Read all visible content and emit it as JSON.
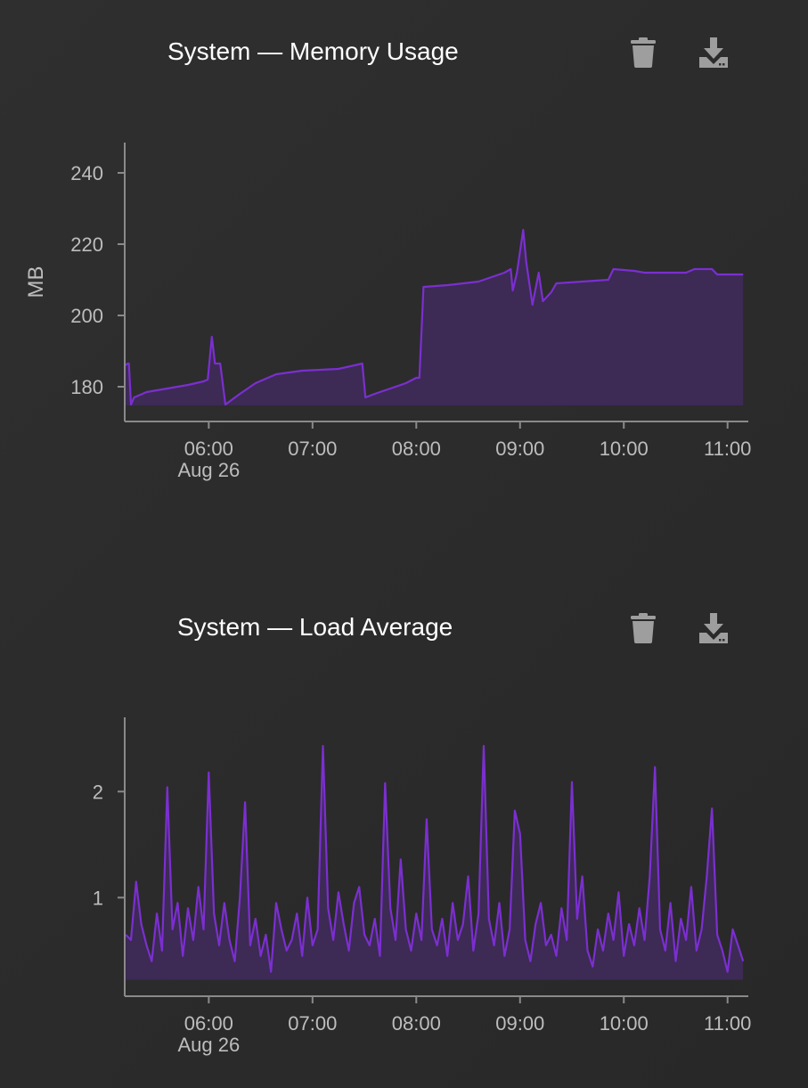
{
  "colors": {
    "line": "#7b2fd0",
    "fill": "#3d2a55",
    "axis": "#8a8a8a",
    "text": "#bdbdbd"
  },
  "chart_data": [
    {
      "type": "area",
      "title": "System — Memory Usage",
      "ylabel": "MB",
      "xlabel": "",
      "ylim": [
        170.25,
        248.5
      ],
      "xlim": [
        5.19,
        11.2
      ],
      "yticks": [
        {
          "v": 180,
          "label": "180"
        },
        {
          "v": 200,
          "label": "200"
        },
        {
          "v": 220,
          "label": "220"
        },
        {
          "v": 240,
          "label": "240"
        }
      ],
      "xticks": [
        {
          "v": 6,
          "label": "06:00",
          "sub": "Aug 26"
        },
        {
          "v": 7,
          "label": "07:00"
        },
        {
          "v": 8,
          "label": "08:00"
        },
        {
          "v": 9,
          "label": "09:00"
        },
        {
          "v": 10,
          "label": "10:00"
        },
        {
          "v": 11,
          "label": "11:00"
        }
      ],
      "baseline": 174.75,
      "x": [
        5.19,
        5.22,
        5.23,
        5.25,
        5.28,
        5.4,
        5.6,
        5.8,
        5.95,
        5.99,
        6.03,
        6.06,
        6.11,
        6.16,
        6.3,
        6.45,
        6.65,
        6.9,
        7.25,
        7.48,
        7.51,
        7.6,
        7.75,
        7.9,
        8.0,
        8.03,
        8.07,
        8.3,
        8.6,
        8.85,
        8.91,
        8.93,
        8.97,
        9.03,
        9.06,
        9.12,
        9.18,
        9.22,
        9.3,
        9.35,
        9.6,
        9.85,
        9.9,
        10.1,
        10.2,
        10.6,
        10.68,
        10.85,
        10.9,
        11.15
      ],
      "y": [
        186,
        186.5,
        186.5,
        175,
        177,
        178.5,
        179.5,
        180.5,
        181.5,
        182,
        194,
        186.5,
        186.5,
        175,
        178,
        181,
        183.5,
        184.5,
        185,
        186.5,
        177,
        178,
        179.5,
        181,
        182.5,
        182.5,
        208,
        208.5,
        209.5,
        212,
        213,
        207,
        212,
        224,
        215,
        203,
        212,
        204,
        206.5,
        209,
        209.5,
        210,
        213,
        212.5,
        212,
        212,
        213,
        213,
        211.5,
        211.5
      ]
    },
    {
      "type": "area",
      "title": "System — Load Average",
      "ylabel": "",
      "xlabel": "",
      "ylim": [
        0.07,
        2.7
      ],
      "xlim": [
        5.19,
        11.2
      ],
      "yticks": [
        {
          "v": 1,
          "label": "1"
        },
        {
          "v": 2,
          "label": "2"
        }
      ],
      "xticks": [
        {
          "v": 6,
          "label": "06:00",
          "sub": "Aug 26"
        },
        {
          "v": 7,
          "label": "07:00"
        },
        {
          "v": 8,
          "label": "08:00"
        },
        {
          "v": 9,
          "label": "09:00"
        },
        {
          "v": 10,
          "label": "10:00"
        },
        {
          "v": 11,
          "label": "11:00"
        }
      ],
      "baseline": 0.225,
      "x_start": 5.2,
      "x_step": 0.05,
      "y": [
        0.65,
        0.6,
        1.15,
        0.75,
        0.55,
        0.4,
        0.85,
        0.5,
        2.04,
        0.7,
        0.95,
        0.45,
        0.9,
        0.6,
        1.1,
        0.7,
        2.18,
        0.85,
        0.55,
        0.95,
        0.6,
        0.4,
        1.0,
        1.9,
        0.55,
        0.8,
        0.45,
        0.65,
        0.3,
        0.95,
        0.7,
        0.5,
        0.6,
        0.85,
        0.45,
        1.0,
        0.55,
        0.7,
        2.43,
        0.9,
        0.6,
        1.05,
        0.75,
        0.5,
        0.95,
        1.1,
        0.65,
        0.55,
        0.8,
        0.45,
        2.08,
        0.9,
        0.6,
        1.36,
        0.7,
        0.5,
        0.85,
        0.6,
        1.74,
        0.7,
        0.55,
        0.8,
        0.45,
        0.95,
        0.6,
        0.75,
        1.2,
        0.5,
        0.85,
        2.43,
        0.8,
        0.55,
        0.95,
        0.45,
        0.7,
        1.82,
        1.6,
        0.6,
        0.4,
        0.75,
        0.95,
        0.55,
        0.65,
        0.45,
        0.9,
        0.6,
        2.09,
        0.8,
        1.2,
        0.5,
        0.35,
        0.7,
        0.5,
        0.85,
        0.6,
        1.05,
        0.45,
        0.75,
        0.55,
        0.9,
        0.6,
        1.2,
        2.23,
        0.7,
        0.5,
        0.95,
        0.4,
        0.8,
        0.6,
        1.1,
        0.5,
        0.7,
        1.2,
        1.84,
        0.65,
        0.5,
        0.3,
        0.7,
        0.55,
        0.4
      ]
    }
  ],
  "actions": {
    "delete": "trash-icon",
    "download": "download-icon"
  }
}
